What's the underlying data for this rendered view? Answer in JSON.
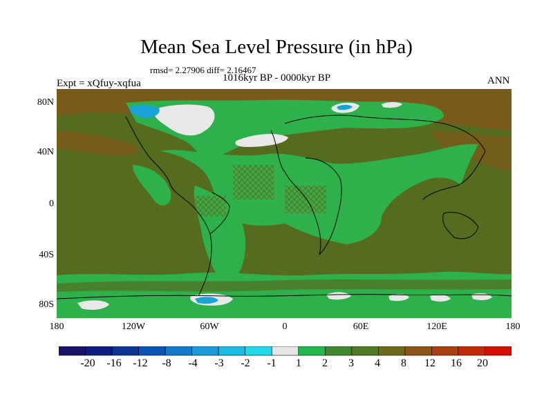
{
  "title": "Mean Sea Level Pressure (in hPa)",
  "stats": "rmsd= 2.27906 diff= 2.16467",
  "period": "1016kyr BP - 0000kyr BP",
  "experiment": "Expt = xQfuy-xqfua",
  "season": "ANN",
  "lat_labels": [
    "80N",
    "40N",
    "0",
    "40S",
    "80S"
  ],
  "lon_labels": [
    "180",
    "120W",
    "60W",
    "0",
    "60E",
    "120E",
    "180"
  ],
  "colorbar": {
    "colors": [
      "#1a1466",
      "#0e1d7e",
      "#0c3596",
      "#0b55b6",
      "#1479c8",
      "#1b9bd9",
      "#1bbbe6",
      "#22d8ec",
      "#e6e6e6",
      "#22b84c",
      "#3f8a2e",
      "#4f7a26",
      "#6b6a1d",
      "#8a5516",
      "#a8400f",
      "#c22a08",
      "#d80f05"
    ],
    "labels": [
      "-20",
      "-16",
      "-12",
      "-8",
      "-4",
      "-3",
      "-2",
      "-1",
      "1",
      "2",
      "3",
      "4",
      "8",
      "12",
      "16",
      "20"
    ]
  },
  "map_colors": {
    "background": "#556b1e",
    "mid": "#2eb14a",
    "high": "#7a5a1a",
    "low": "#e8e8e8",
    "lowest": "#1aa3d6"
  }
}
